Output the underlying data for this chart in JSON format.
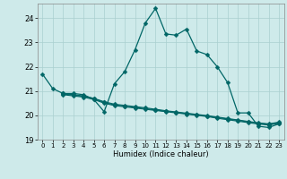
{
  "xlabel": "Humidex (Indice chaleur)",
  "xlim": [
    -0.5,
    23.5
  ],
  "ylim": [
    19.0,
    24.6
  ],
  "yticks": [
    19,
    20,
    21,
    22,
    23,
    24
  ],
  "xticks": [
    0,
    1,
    2,
    3,
    4,
    5,
    6,
    7,
    8,
    9,
    10,
    11,
    12,
    13,
    14,
    15,
    16,
    17,
    18,
    19,
    20,
    21,
    22,
    23
  ],
  "background_color": "#ceeaea",
  "grid_color": "#aacfcf",
  "line_color": "#006666",
  "main_line": {
    "x": [
      0,
      1,
      2,
      3,
      4,
      5,
      6,
      7,
      8,
      9,
      10,
      11,
      12,
      13,
      14,
      15,
      16,
      17,
      18,
      19,
      20,
      21,
      22,
      23
    ],
    "y": [
      21.7,
      21.1,
      20.9,
      20.9,
      20.85,
      20.65,
      20.15,
      21.3,
      21.8,
      22.7,
      23.8,
      24.4,
      23.35,
      23.3,
      23.55,
      22.65,
      22.5,
      22.0,
      21.35,
      20.1,
      20.1,
      19.55,
      19.5,
      19.65
    ]
  },
  "line2": {
    "x": [
      2,
      3,
      4,
      5,
      6,
      7,
      8,
      9,
      10,
      11,
      12,
      13,
      14,
      15,
      16,
      17,
      18,
      19,
      20,
      21,
      22,
      23
    ],
    "y": [
      20.85,
      20.8,
      20.75,
      20.65,
      20.5,
      20.4,
      20.35,
      20.3,
      20.25,
      20.2,
      20.15,
      20.1,
      20.05,
      20.0,
      19.95,
      19.88,
      19.82,
      19.76,
      19.7,
      19.64,
      19.6,
      19.67
    ]
  },
  "line3": {
    "x": [
      2,
      3,
      4,
      5,
      6,
      7,
      8,
      9,
      10,
      11,
      12,
      13,
      14,
      15,
      16,
      17,
      18,
      19,
      20,
      21,
      22,
      23
    ],
    "y": [
      20.88,
      20.83,
      20.78,
      20.68,
      20.53,
      20.43,
      20.38,
      20.33,
      20.28,
      20.22,
      20.17,
      20.12,
      20.07,
      20.02,
      19.97,
      19.91,
      19.85,
      19.79,
      19.73,
      19.67,
      19.63,
      19.7
    ]
  },
  "line4": {
    "x": [
      2,
      3,
      4,
      5,
      6,
      7,
      8,
      9,
      10,
      11,
      12,
      13,
      14,
      15,
      16,
      17,
      18,
      19,
      20,
      21,
      22,
      23
    ],
    "y": [
      20.9,
      20.85,
      20.8,
      20.7,
      20.56,
      20.46,
      20.41,
      20.36,
      20.31,
      20.25,
      20.19,
      20.14,
      20.09,
      20.04,
      19.99,
      19.93,
      19.87,
      19.81,
      19.75,
      19.69,
      19.65,
      19.72
    ]
  }
}
